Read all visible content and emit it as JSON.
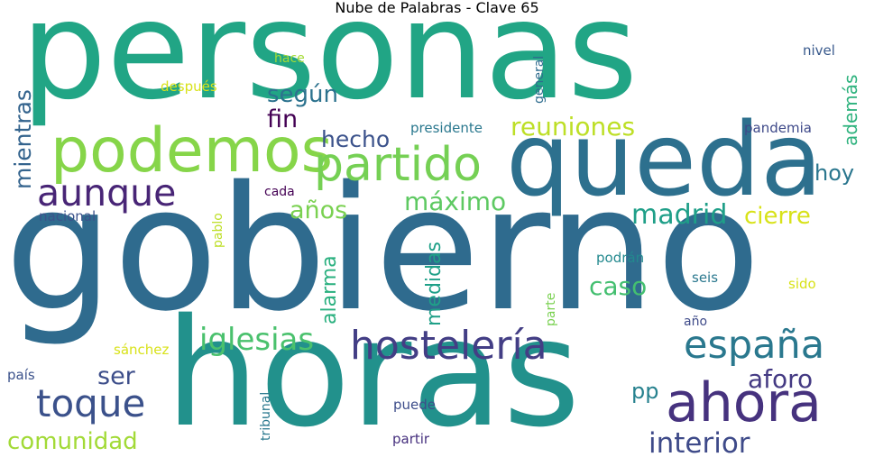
{
  "title": "Nube de Palabras - Clave 65",
  "words": [
    {
      "text": "personas",
      "color": "#21a585"
    },
    {
      "text": "gobierno",
      "color": "#2f6b8e"
    },
    {
      "text": "horas",
      "color": "#22918c"
    },
    {
      "text": "queda",
      "color": "#2d708e"
    },
    {
      "text": "podemos",
      "color": "#86d549"
    },
    {
      "text": "partido",
      "color": "#75d054"
    },
    {
      "text": "hostelería",
      "color": "#433e85"
    },
    {
      "text": "españa",
      "color": "#2a788e"
    },
    {
      "text": "ahora",
      "color": "#46327e"
    },
    {
      "text": "aunque",
      "color": "#482576"
    },
    {
      "text": "toque",
      "color": "#3b518b"
    },
    {
      "text": "iglesias",
      "color": "#4ac16d"
    },
    {
      "text": "comunidad",
      "color": "#a2da37"
    },
    {
      "text": "interior",
      "color": "#3e4a89"
    },
    {
      "text": "reuniones",
      "color": "#bddf26"
    },
    {
      "text": "máximo",
      "color": "#5ec962"
    },
    {
      "text": "madrid",
      "color": "#1f9f88"
    },
    {
      "text": "cierre",
      "color": "#d8e219"
    },
    {
      "text": "caso",
      "color": "#44bf70"
    },
    {
      "text": "según",
      "color": "#2c728e"
    },
    {
      "text": "hecho",
      "color": "#3b528b"
    },
    {
      "text": "años",
      "color": "#7ad151"
    },
    {
      "text": "hoy",
      "color": "#2a768e"
    },
    {
      "text": "aforo",
      "color": "#443a83"
    },
    {
      "text": "ser",
      "color": "#3d4e8a"
    },
    {
      "text": "pp",
      "color": "#26818e"
    },
    {
      "text": "fin",
      "color": "#440154"
    },
    {
      "text": "mientras",
      "color": "#33638d"
    },
    {
      "text": "además",
      "color": "#2db27d"
    },
    {
      "text": "alarma",
      "color": "#2ab07f"
    },
    {
      "text": "medidas",
      "color": "#1fa088"
    },
    {
      "text": "nacional",
      "color": "#3b528b"
    },
    {
      "text": "cada",
      "color": "#440154"
    },
    {
      "text": "hace",
      "color": "#a5db36"
    },
    {
      "text": "después",
      "color": "#d8e219"
    },
    {
      "text": "presidente",
      "color": "#2a788e"
    },
    {
      "text": "general",
      "color": "#2f6c8e"
    },
    {
      "text": "pandemia",
      "color": "#3e4989"
    },
    {
      "text": "nivel",
      "color": "#38598c"
    },
    {
      "text": "pablo",
      "color": "#bddf26"
    },
    {
      "text": "podrán",
      "color": "#23898e"
    },
    {
      "text": "seis",
      "color": "#2a788e"
    },
    {
      "text": "sido",
      "color": "#d8e219"
    },
    {
      "text": "año",
      "color": "#3e4a89"
    },
    {
      "text": "parte",
      "color": "#7ad151"
    },
    {
      "text": "sánchez",
      "color": "#d8e219"
    },
    {
      "text": "país",
      "color": "#3b528b"
    },
    {
      "text": "tribunal",
      "color": "#2a788e"
    },
    {
      "text": "puede",
      "color": "#3d4d8a"
    },
    {
      "text": "partir",
      "color": "#46307e"
    }
  ]
}
